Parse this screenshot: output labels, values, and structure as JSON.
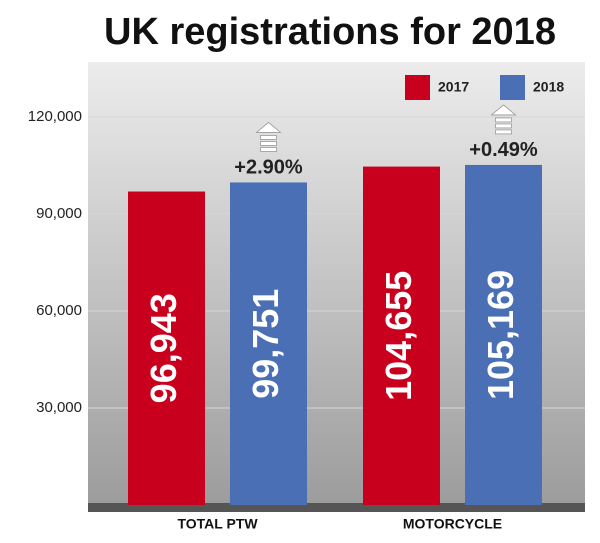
{
  "chart_data": {
    "type": "bar",
    "title": "UK registrations for 2018",
    "categories": [
      "TOTAL PTW",
      "MOTORCYCLE"
    ],
    "series": [
      {
        "name": "2017",
        "color": "#c8001e",
        "values": [
          96943,
          104655
        ],
        "value_labels": [
          "96,943",
          "104,655"
        ]
      },
      {
        "name": "2018",
        "color": "#4a6fb5",
        "values": [
          99751,
          105169
        ],
        "value_labels": [
          "99,751",
          "105,169"
        ]
      }
    ],
    "annotations": [
      "+2.90%",
      "+0.49%"
    ],
    "ylim": [
      0,
      137000
    ],
    "yticks": [
      {
        "value": 30000,
        "label": "30,000"
      },
      {
        "value": 60000,
        "label": "60,000"
      },
      {
        "value": 90000,
        "label": "90,000"
      },
      {
        "value": 120000,
        "label": "120,000"
      }
    ],
    "grid": true,
    "legend": "top-right"
  }
}
